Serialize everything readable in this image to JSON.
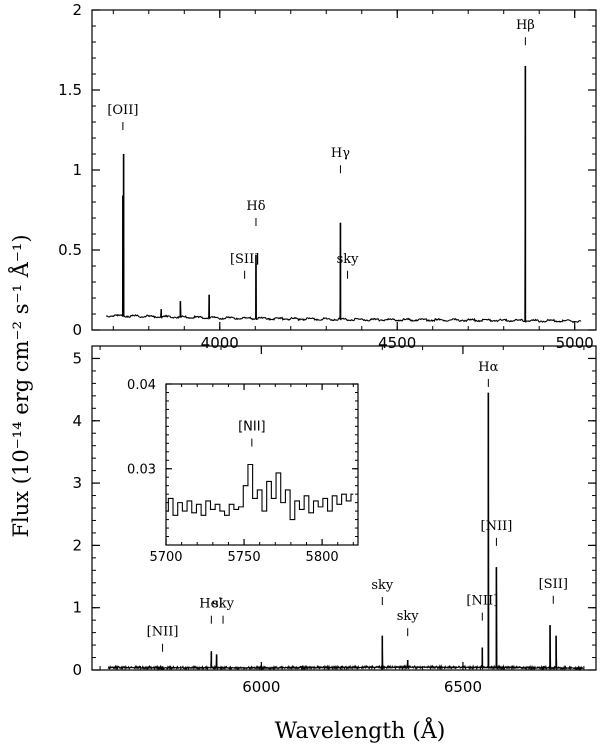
{
  "figure": {
    "ylabel": "Flux (10⁻¹⁴ erg cm⁻² s⁻¹ Å⁻¹)",
    "xlabel": "Wavelength (Å)"
  },
  "chart_data": [
    {
      "id": "top-panel",
      "type": "line",
      "title": "",
      "xlabel": "",
      "ylabel": "",
      "xlim": [
        3640,
        5060
      ],
      "ylim": [
        0,
        2
      ],
      "xticks": [
        4000,
        4500,
        5000
      ],
      "yticks": [
        0,
        0.5,
        1,
        1.5,
        2
      ],
      "ytick_labels": [
        "0",
        "0.5",
        "1",
        "1.5",
        "2"
      ],
      "grid": false,
      "continuum": {
        "x": [
          3680,
          3800,
          4000,
          4200,
          4400,
          4600,
          4800,
          5020
        ],
        "y": [
          0.09,
          0.085,
          0.075,
          0.07,
          0.065,
          0.063,
          0.06,
          0.055
        ]
      },
      "lines": [
        {
          "x": 3727,
          "y": 0.84
        },
        {
          "x": 3729,
          "y": 1.1
        },
        {
          "x": 3835,
          "y": 0.13
        },
        {
          "x": 3889,
          "y": 0.18
        },
        {
          "x": 3970,
          "y": 0.22
        },
        {
          "x": 4102,
          "y": 0.47
        },
        {
          "x": 4340,
          "y": 0.67
        },
        {
          "x": 4861,
          "y": 1.65
        }
      ],
      "annotations": [
        {
          "text": "[OII]",
          "x": 3727,
          "y": 1.35
        },
        {
          "text": "Hδ",
          "x": 4102,
          "y": 0.75
        },
        {
          "text": "[SII]",
          "x": 4070,
          "y": 0.42
        },
        {
          "text": "Hγ",
          "x": 4340,
          "y": 1.08
        },
        {
          "text": "sky",
          "x": 4360,
          "y": 0.42
        },
        {
          "text": "Hβ",
          "x": 4861,
          "y": 1.88
        }
      ]
    },
    {
      "id": "bottom-panel",
      "type": "line",
      "title": "",
      "xlabel": "",
      "ylabel": "",
      "xlim": [
        5580,
        6830
      ],
      "ylim": [
        0,
        5.2
      ],
      "xticks": [
        6000,
        6500
      ],
      "yticks": [
        0,
        1,
        2,
        3,
        4,
        5
      ],
      "ytick_labels": [
        "0",
        "1",
        "2",
        "3",
        "4",
        "5"
      ],
      "grid": false,
      "continuum": {
        "x": [
          5620,
          5800,
          6000,
          6200,
          6400,
          6600,
          6800
        ],
        "y": [
          0.04,
          0.035,
          0.035,
          0.04,
          0.045,
          0.04,
          0.03
        ]
      },
      "lines": [
        {
          "x": 5755,
          "y": 0.05
        },
        {
          "x": 5876,
          "y": 0.3
        },
        {
          "x": 5889,
          "y": 0.25
        },
        {
          "x": 6300,
          "y": 0.55
        },
        {
          "x": 6363,
          "y": 0.16
        },
        {
          "x": 6548,
          "y": 0.36
        },
        {
          "x": 6563,
          "y": 4.45
        },
        {
          "x": 6583,
          "y": 1.65
        },
        {
          "x": 6716,
          "y": 0.72
        },
        {
          "x": 6731,
          "y": 0.55
        }
      ],
      "annotations": [
        {
          "text": "[NII]",
          "x": 5755,
          "y": 0.55
        },
        {
          "text": "HeI",
          "x": 5876,
          "y": 1.0
        },
        {
          "text": "sky",
          "x": 5905,
          "y": 1.0
        },
        {
          "text": "sky",
          "x": 6300,
          "y": 1.3
        },
        {
          "text": "sky",
          "x": 6363,
          "y": 0.8
        },
        {
          "text": "[NII]",
          "x": 6548,
          "y": 1.05
        },
        {
          "text": "Hα",
          "x": 6563,
          "y": 4.8
        },
        {
          "text": "[NII]",
          "x": 6583,
          "y": 2.25
        },
        {
          "text": "[SII]",
          "x": 6724,
          "y": 1.32
        }
      ]
    },
    {
      "id": "inset",
      "type": "line",
      "title": "",
      "xlabel": "",
      "ylabel": "",
      "xlim": [
        5700,
        5823
      ],
      "ylim": [
        0.021,
        0.04
      ],
      "xticks": [
        5700,
        5750,
        5800
      ],
      "yticks": [
        0.03,
        0.04
      ],
      "ytick_labels": [
        "0.03",
        "0.04"
      ],
      "grid": false,
      "x": [
        5700,
        5703,
        5706,
        5709,
        5712,
        5715,
        5718,
        5721,
        5724,
        5727,
        5730,
        5733,
        5736,
        5739,
        5742,
        5745,
        5748,
        5751,
        5754,
        5757,
        5760,
        5763,
        5766,
        5769,
        5772,
        5775,
        5778,
        5781,
        5784,
        5787,
        5790,
        5793,
        5796,
        5799,
        5802,
        5805,
        5808,
        5811,
        5814,
        5817,
        5820
      ],
      "y": [
        0.025,
        0.0265,
        0.0245,
        0.026,
        0.025,
        0.0262,
        0.0248,
        0.0258,
        0.0245,
        0.0262,
        0.0252,
        0.0258,
        0.025,
        0.0245,
        0.0258,
        0.0252,
        0.0255,
        0.028,
        0.0305,
        0.0265,
        0.0275,
        0.025,
        0.0285,
        0.0265,
        0.0295,
        0.026,
        0.0275,
        0.024,
        0.0262,
        0.0252,
        0.0268,
        0.0248,
        0.0262,
        0.0255,
        0.0265,
        0.025,
        0.0268,
        0.0258,
        0.027,
        0.0262,
        0.027
      ],
      "annotations": [
        {
          "text": "[NII]",
          "x": 5755,
          "y": 0.0345
        }
      ]
    }
  ]
}
